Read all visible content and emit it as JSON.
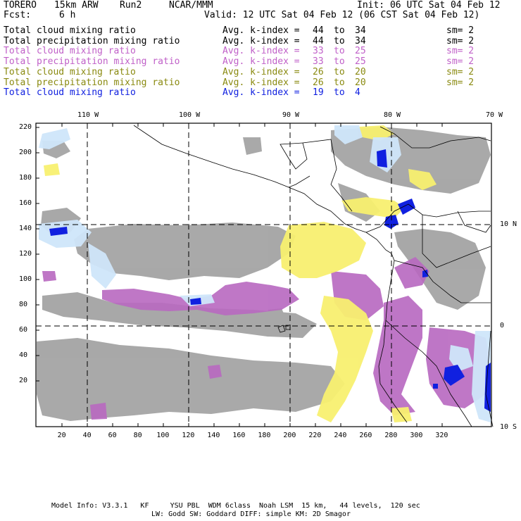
{
  "header": {
    "model": "TORERO",
    "resolution": "15km ARW",
    "run": "Run2",
    "center": "NCAR/MMM",
    "init": "Init: 06 UTC Sat 04 Feb 12",
    "fcst_label": "Fcst:",
    "fcst_value": "6 h",
    "valid": "Valid: 12 UTC Sat 04 Feb 12 (06 CST Sat 04 Feb 12)"
  },
  "legend": [
    {
      "field": "Total cloud mixing ratio",
      "kindex": "Avg. k-index =",
      "from": "44",
      "to_word": "to",
      "to": "34",
      "sm": "sm= 2",
      "color": "#000000"
    },
    {
      "field": "Total precipitation mixing ratio",
      "kindex": "Avg. k-index =",
      "from": "44",
      "to_word": "to",
      "to": "34",
      "sm": "sm= 2",
      "color": "#000000"
    },
    {
      "field": "Total cloud mixing ratio",
      "kindex": "Avg. k-index =",
      "from": "33",
      "to_word": "to",
      "to": "25",
      "sm": "sm= 2",
      "color": "#c060c8"
    },
    {
      "field": "Total precipitation mixing ratio",
      "kindex": "Avg. k-index =",
      "from": "33",
      "to_word": "to",
      "to": "25",
      "sm": "sm= 2",
      "color": "#c060c8"
    },
    {
      "field": "Total cloud mixing ratio",
      "kindex": "Avg. k-index =",
      "from": "26",
      "to_word": "to",
      "to": "20",
      "sm": "sm= 2",
      "color": "#8a8a10"
    },
    {
      "field": "Total precipitation mixing ratio",
      "kindex": "Avg. k-index =",
      "from": "26",
      "to_word": "to",
      "to": "20",
      "sm": "sm= 2",
      "color": "#8a8a10"
    },
    {
      "field": "Total cloud mixing ratio",
      "kindex": "Avg. k-index =",
      "from": "19",
      "to_word": "to",
      "to": "4",
      "sm": "",
      "color": "#1020e0"
    }
  ],
  "top_lon_labels": [
    "110 W",
    "100 W",
    "90 W",
    "80 W",
    "70 W"
  ],
  "right_lat_labels": [
    "10 N",
    "0",
    "10 S"
  ],
  "y_ticks": [
    "220",
    "200",
    "180",
    "160",
    "140",
    "120",
    "100",
    "80",
    "60",
    "40",
    "20"
  ],
  "x_ticks": [
    "20",
    "40",
    "60",
    "80",
    "100",
    "120",
    "140",
    "160",
    "180",
    "200",
    "220",
    "240",
    "260",
    "280",
    "300",
    "320"
  ],
  "footer": {
    "line1": "Model Info: V3.3.1   KF     YSU PBL  WDM 6class  Noah LSM  15 km,   44 levels,  120 sec",
    "line2": "LW: Godd SW: Goddard DIFF: simple KM: 2D Smagor"
  },
  "colors": {
    "gray": "#9a9a9a",
    "purple": "#b868c0",
    "yellow": "#f8f070",
    "lightblue": "#cfe6fa",
    "blue": "#1020e0"
  }
}
